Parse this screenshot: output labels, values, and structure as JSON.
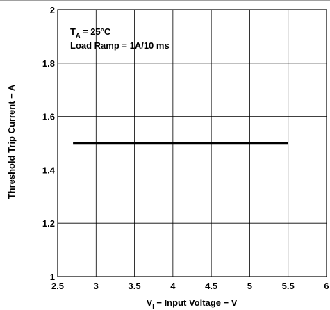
{
  "chart_data": {
    "type": "line",
    "title": "",
    "xlabel": {
      "main": "V",
      "sub": "I",
      "rest": " − Input Voltage − V"
    },
    "ylabel": "Threshold Trip Current − A",
    "xlim": [
      2.5,
      6
    ],
    "ylim": [
      1,
      2
    ],
    "x_ticks": [
      2.5,
      3,
      3.5,
      4,
      4.5,
      5,
      5.5,
      6
    ],
    "x_tick_labels": [
      "2.5",
      "3",
      "3.5",
      "4",
      "4.5",
      "5",
      "5.5",
      "6"
    ],
    "y_ticks": [
      1,
      1.2,
      1.4,
      1.6,
      1.8,
      2
    ],
    "y_tick_labels": [
      "1",
      "1.2",
      "1.4",
      "1.6",
      "1.8",
      "2"
    ],
    "grid": true,
    "annotations": {
      "line1": {
        "main": "T",
        "sub": "A",
        "rest": " = 25°C"
      },
      "line2": "Load Ramp = 1A/10 ms"
    },
    "series": [
      {
        "x": [
          2.7,
          5.5
        ],
        "y": [
          1.5,
          1.5
        ]
      }
    ]
  }
}
